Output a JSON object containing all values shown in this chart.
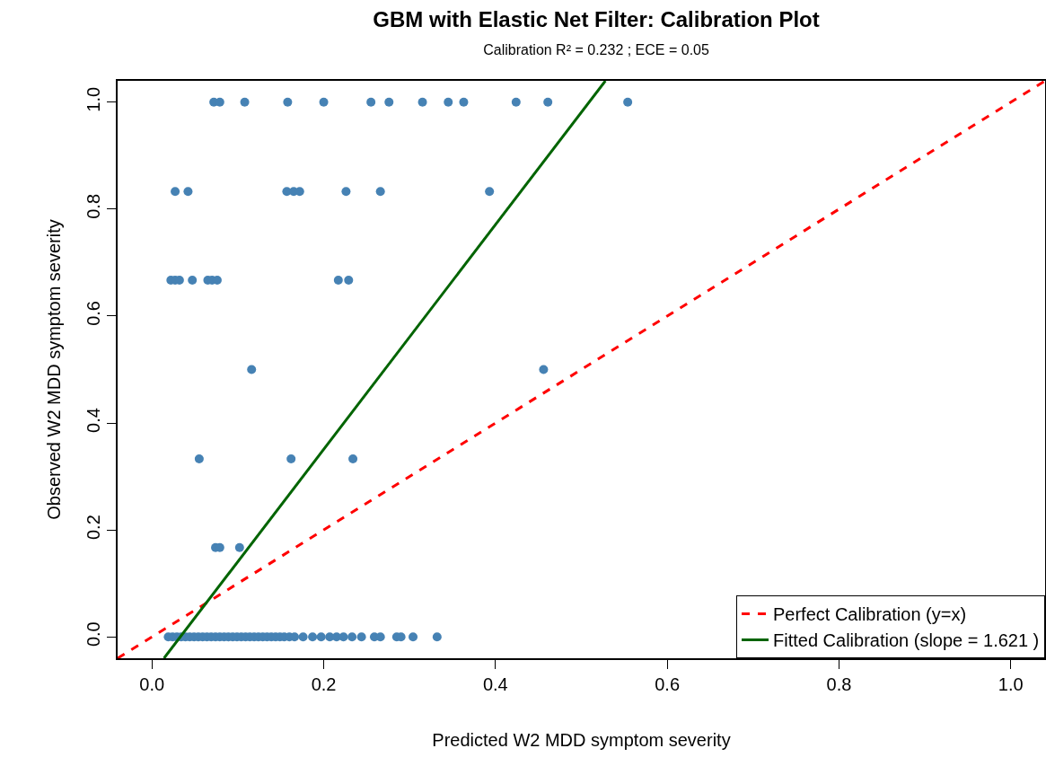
{
  "chart_data": {
    "type": "scatter",
    "title": "GBM with Elastic Net Filter: Calibration Plot",
    "subtitle": "Calibration R² = 0.232 ; ECE = 0.05",
    "xlabel": "Predicted W2 MDD symptom severity",
    "ylabel": "Observed W2 MDD symptom severity",
    "xlim": [
      -0.04,
      1.04
    ],
    "ylim": [
      -0.04,
      1.04
    ],
    "xticks": [
      {
        "value": 0,
        "label": "0.0"
      },
      0.2,
      0.4,
      0.6,
      0.8,
      {
        "value": 1,
        "label": "1.0"
      }
    ],
    "yticks": [
      {
        "value": 0,
        "label": "0.0"
      },
      0.2,
      0.4,
      0.6,
      0.8,
      {
        "value": 1,
        "label": "1.0"
      }
    ],
    "grid": false,
    "legend": "bottom right",
    "series": [
      {
        "marker": "circle",
        "color": "#4682b4",
        "x": [
          0.072,
          0.079,
          0.108,
          0.158,
          0.2,
          0.255,
          0.276,
          0.315,
          0.345,
          0.363,
          0.424,
          0.461,
          0.554,
          0.027,
          0.042,
          0.157,
          0.165,
          0.172,
          0.226,
          0.266,
          0.393,
          0.022,
          0.027,
          0.032,
          0.047,
          0.065,
          0.07,
          0.076,
          0.217,
          0.229,
          0.116,
          0.456,
          0.055,
          0.162,
          0.234,
          0.074,
          0.079,
          0.102,
          0.019,
          0.024,
          0.029,
          0.034,
          0.039,
          0.044,
          0.049,
          0.054,
          0.059,
          0.064,
          0.069,
          0.074,
          0.079,
          0.084,
          0.089,
          0.094,
          0.099,
          0.104,
          0.109,
          0.114,
          0.119,
          0.124,
          0.129,
          0.134,
          0.139,
          0.144,
          0.149,
          0.154,
          0.16,
          0.166,
          0.176,
          0.187,
          0.197,
          0.207,
          0.215,
          0.223,
          0.233,
          0.244,
          0.259,
          0.266,
          0.285,
          0.29,
          0.304,
          0.332
        ],
        "values": [
          1,
          1,
          1,
          1,
          1,
          1,
          1,
          1,
          1,
          1,
          1,
          1,
          1,
          0.833,
          0.833,
          0.833,
          0.833,
          0.833,
          0.833,
          0.833,
          0.833,
          0.667,
          0.667,
          0.667,
          0.667,
          0.667,
          0.667,
          0.667,
          0.667,
          0.667,
          0.5,
          0.5,
          0.333,
          0.333,
          0.333,
          0.167,
          0.167,
          0.167,
          0,
          0,
          0,
          0,
          0,
          0,
          0,
          0,
          0,
          0,
          0,
          0,
          0,
          0,
          0,
          0,
          0,
          0,
          0,
          0,
          0,
          0,
          0,
          0,
          0,
          0,
          0,
          0,
          0,
          0,
          0,
          0,
          0,
          0,
          0,
          0,
          0,
          0,
          0,
          0,
          0,
          0,
          0,
          0
        ]
      },
      {
        "type": "line",
        "marker": "none",
        "name": "Perfect Calibration (y=x)",
        "color": "#ff0000",
        "line_style": "dashed",
        "x": [
          -0.04,
          1.04
        ],
        "values": [
          -0.04,
          1.04
        ]
      },
      {
        "type": "line",
        "marker": "none",
        "name": "Fitted Calibration (slope = 1.621 )",
        "color": "#006400",
        "line_style": "solid",
        "x": [
          0.014,
          0.528
        ],
        "values": [
          -0.04,
          1.04
        ]
      }
    ]
  }
}
